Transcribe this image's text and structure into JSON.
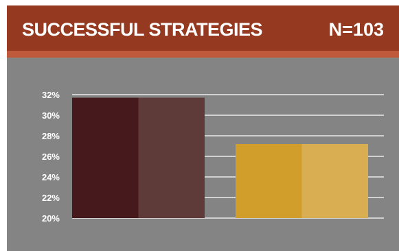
{
  "header": {
    "title": "SUCCESSFUL STRATEGIES",
    "n_label": "N=103"
  },
  "colors": {
    "header_bg": "#953a21",
    "header_stripe": "#bf5a3c",
    "panel_bg": "#848484",
    "gridline": "#ffffff"
  },
  "chart_data": {
    "type": "bar",
    "categories": [
      "",
      ""
    ],
    "values": [
      31.7,
      27.2
    ],
    "bar_colors": [
      [
        "#461a1c",
        "#5e3a38"
      ],
      [
        "#d19e2c",
        "#d9ae52"
      ]
    ],
    "ylim": [
      20,
      32
    ],
    "yticks": [
      20,
      22,
      24,
      26,
      28,
      30,
      32
    ],
    "ytick_labels": [
      "20%",
      "22%",
      "24%",
      "26%",
      "28%",
      "30%",
      "32%"
    ],
    "grid": true,
    "legend": "none"
  }
}
